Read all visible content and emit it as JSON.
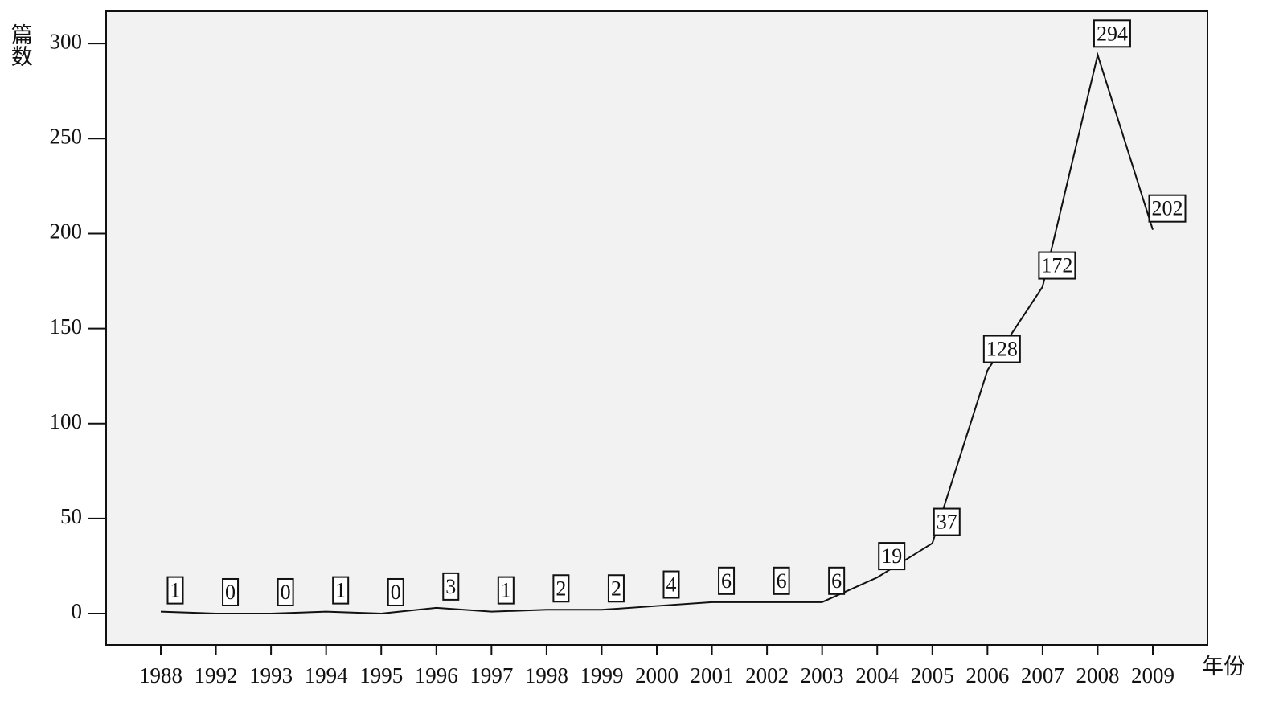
{
  "chart_data": {
    "type": "line",
    "y_label": "篇数",
    "x_label": "年份",
    "categories": [
      "1988",
      "1992",
      "1993",
      "1994",
      "1995",
      "1996",
      "1997",
      "1998",
      "1999",
      "2000",
      "2001",
      "2002",
      "2003",
      "2004",
      "2005",
      "2006",
      "2007",
      "2008",
      "2009"
    ],
    "values": [
      1,
      0,
      0,
      1,
      0,
      3,
      1,
      2,
      2,
      4,
      6,
      6,
      6,
      19,
      37,
      128,
      172,
      294,
      202
    ],
    "color": "#111111",
    "background": "#f2f2f2",
    "ylim": [
      -16.5,
      317
    ],
    "yticks": [
      0,
      50,
      100,
      150,
      200,
      250,
      300
    ]
  }
}
